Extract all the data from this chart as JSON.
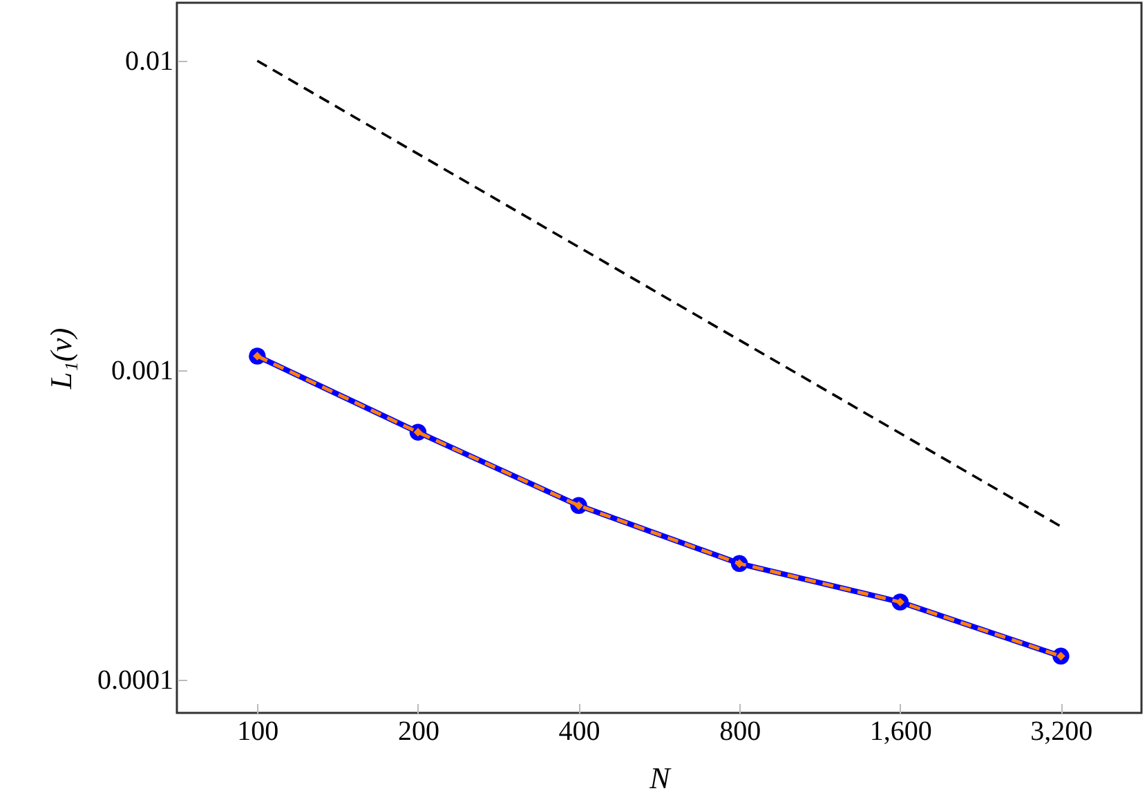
{
  "chart_data": {
    "type": "line",
    "xlabel": "N",
    "ylabel": "L₁(v)",
    "x": [
      100,
      200,
      400,
      800,
      1600,
      3200
    ],
    "series": [
      {
        "color": "#0000ff",
        "marker": "circle",
        "line_style": "solid",
        "values": [
          0.00111,
          0.00063,
          0.000365,
          0.000237,
          0.000178,
          0.000119
        ]
      },
      {
        "color": "#ff7f0e",
        "marker": "diamond",
        "line_style": "dashed",
        "values": [
          0.00111,
          0.00063,
          0.000365,
          0.000237,
          0.000178,
          0.000119
        ]
      },
      {
        "type": "line",
        "color": "#000000",
        "marker": "none",
        "line_style": "dashed",
        "x": [
          100,
          3200
        ],
        "values": [
          0.01,
          0.0003125
        ]
      }
    ],
    "log": "xy",
    "grid": false,
    "xlim": [
      70.7,
      4530
    ],
    "ylim": [
      7.8e-05,
      0.0154
    ],
    "xticks": [
      100,
      200,
      400,
      800,
      {
        "value": 1600,
        "label": "1,600"
      },
      {
        "value": 3200,
        "label": "3,200"
      }
    ],
    "yticks": [
      0.0001,
      0.001,
      0.01
    ]
  }
}
